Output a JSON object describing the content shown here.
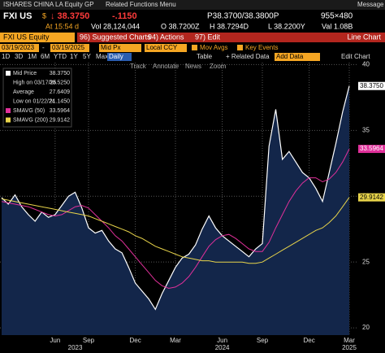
{
  "menu_bar": {
    "security": "ISHARES CHINA LA Equity",
    "function": "GP",
    "menu": "Related Functions Menu",
    "message": "Message"
  },
  "quote": {
    "ticker": "FXI US",
    "currency": "$",
    "last": "↓ 38.3750",
    "change": "-.1150",
    "bid_ask": "P38.3700/38.3800P",
    "size": "955×480",
    "time": "At 15:54 d",
    "volume": "Vol 28,124,044",
    "open": "O 38.7200Z",
    "high": "H 38.7294D",
    "low": "L 38.2200Y",
    "value": "Val 1.08B"
  },
  "toolbar": {
    "security": "FXI US Equity",
    "buttons": [
      "96) Suggested Charts",
      "94) Actions",
      "97) Edit"
    ],
    "chart_type": "Line Chart"
  },
  "settings": {
    "start": "03/19/2023",
    "separator": "-",
    "end": "03/19/2025",
    "field": "Mid Px",
    "currency": "Local CCY",
    "options": [
      "Mov Avgs",
      "Key Events"
    ]
  },
  "periods": [
    "1D",
    "3D",
    "1M",
    "6M",
    "YTD",
    "1Y",
    "5Y",
    "Max"
  ],
  "frequency": "Daily",
  "actions": [
    "Table",
    "+ Related Data",
    "Add Data",
    "Edit Chart"
  ],
  "chart_tools": [
    "Track",
    "Annotate",
    "News",
    "Zoom"
  ],
  "chart_data": {
    "type": "line",
    "categories": [
      null,
      null,
      null,
      null,
      null,
      null,
      null,
      null,
      "Jun",
      null,
      null,
      null,
      null,
      "Sep",
      null,
      null,
      null,
      null,
      null,
      null,
      "Dec",
      null,
      null,
      null,
      null,
      null,
      "Mar",
      null,
      null,
      null,
      null,
      null,
      null,
      "Jun",
      null,
      null,
      null,
      null,
      null,
      "Sep",
      null,
      null,
      null,
      null,
      null,
      null,
      "Dec",
      null,
      null,
      null,
      null,
      null,
      "Mar"
    ],
    "category_groups": [
      null,
      null,
      null,
      null,
      null,
      null,
      null,
      null,
      null,
      null,
      null,
      "2023",
      null,
      null,
      null,
      null,
      null,
      null,
      null,
      null,
      null,
      null,
      null,
      null,
      null,
      null,
      null,
      null,
      null,
      null,
      null,
      null,
      null,
      "2024",
      null,
      null,
      null,
      null,
      null,
      null,
      null,
      null,
      null,
      null,
      null,
      null,
      null,
      null,
      null,
      null,
      null,
      null,
      "2025"
    ],
    "ylim": [
      19.45,
      40.15
    ],
    "yticks": [
      20,
      25,
      30,
      35,
      40
    ],
    "grid": true,
    "series": [
      {
        "name": "Mid Price",
        "color": "#ffffff",
        "fill": "#13264a",
        "last_label": "38.3750",
        "values": [
          29.9,
          29.4,
          30.1,
          29.2,
          28.6,
          28.1,
          28.8,
          28.4,
          28.6,
          29.3,
          30.0,
          30.3,
          29.1,
          27.6,
          27.2,
          27.4,
          26.6,
          26.0,
          25.7,
          24.6,
          23.4,
          22.8,
          22.2,
          21.4,
          22.6,
          23.6,
          24.6,
          25.3,
          25.6,
          26.3,
          27.5,
          28.5,
          27.6,
          27.0,
          26.6,
          26.2,
          25.8,
          25.4,
          26.0,
          26.4,
          33.8,
          36.6,
          32.8,
          33.4,
          32.6,
          31.8,
          31.4,
          30.6,
          29.6,
          31.8,
          34.0,
          36.4,
          38.375
        ]
      },
      {
        "name": "SMAVG (50)",
        "color": "#e0309a",
        "last_label": "33.5964",
        "values": [
          29.6,
          29.5,
          29.4,
          29.3,
          29.2,
          29.0,
          28.8,
          28.6,
          28.5,
          28.6,
          28.9,
          29.2,
          29.3,
          29.1,
          28.6,
          28.1,
          27.6,
          27.0,
          26.6,
          26.0,
          25.4,
          24.8,
          24.2,
          23.6,
          23.2,
          23.0,
          23.1,
          23.4,
          23.9,
          24.6,
          25.4,
          26.2,
          26.7,
          27.0,
          27.1,
          26.8,
          26.4,
          26.0,
          25.8,
          25.8,
          26.5,
          27.6,
          28.6,
          29.6,
          30.4,
          31.0,
          31.4,
          31.4,
          31.1,
          31.3,
          31.8,
          32.6,
          33.5964
        ]
      },
      {
        "name": "SMAVG (200)",
        "color": "#e8d44a",
        "last_label": "29.9142",
        "values": [
          29.8,
          29.7,
          29.6,
          29.5,
          29.4,
          29.3,
          29.2,
          29.1,
          29.0,
          28.9,
          28.8,
          28.7,
          28.6,
          28.5,
          28.3,
          28.1,
          27.9,
          27.7,
          27.5,
          27.3,
          27.0,
          26.8,
          26.5,
          26.2,
          26.0,
          25.8,
          25.6,
          25.4,
          25.3,
          25.2,
          25.1,
          25.1,
          25.0,
          25.0,
          25.0,
          25.0,
          25.0,
          24.9,
          24.9,
          25.0,
          25.3,
          25.6,
          25.9,
          26.2,
          26.5,
          26.8,
          27.1,
          27.4,
          27.6,
          28.0,
          28.5,
          29.2,
          29.9142
        ]
      }
    ],
    "stats": [
      {
        "label": "High on 03/17/25",
        "value": "38.5250"
      },
      {
        "label": "Average",
        "value": "27.6409"
      },
      {
        "label": "Low on 01/22/24",
        "value": "21.1450"
      }
    ]
  }
}
